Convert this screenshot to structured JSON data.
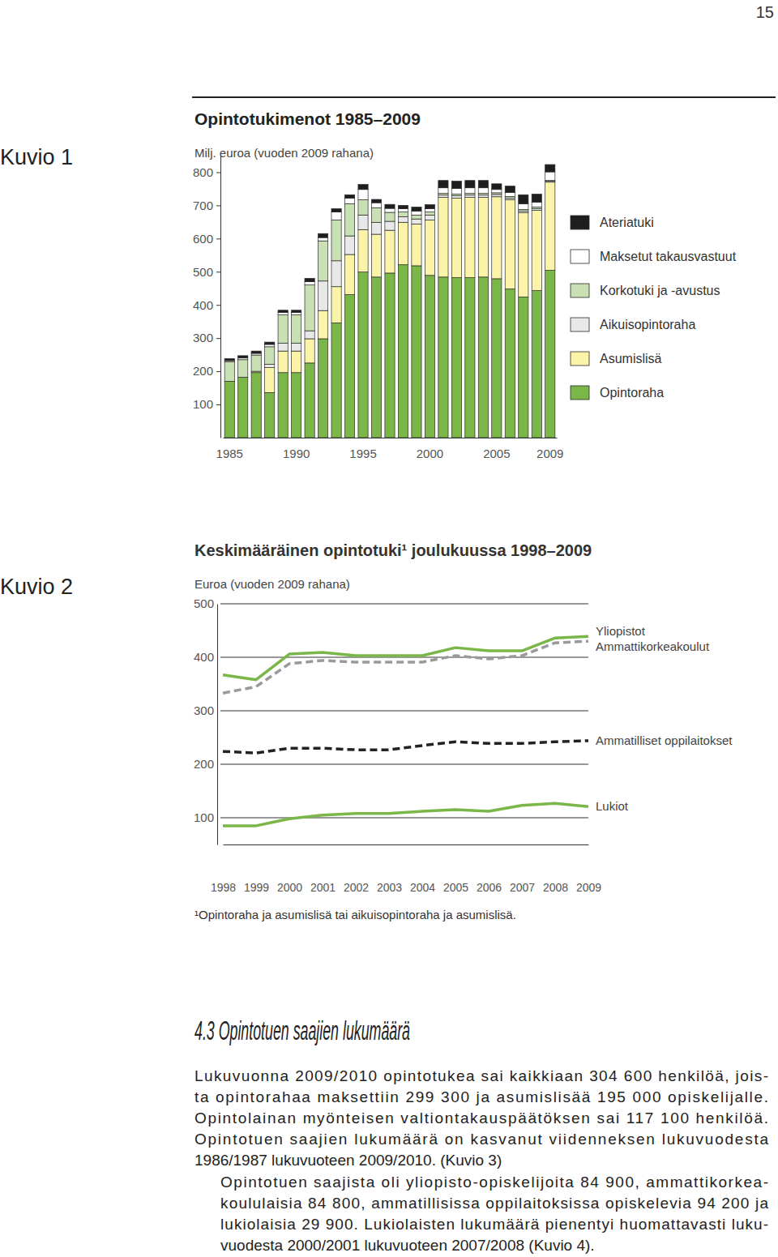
{
  "page_number": "15",
  "chart_data": [
    {
      "type": "bar",
      "figure_label": "Kuvio 1",
      "title": "Opintotukimenot 1985–2009",
      "ylabel": "Milj. euroa (vuoden 2009 rahana)",
      "stacked": true,
      "legend": "right",
      "grid": false,
      "categories": [
        "1985",
        null,
        null,
        null,
        null,
        "1990",
        null,
        null,
        null,
        null,
        "1995",
        null,
        null,
        null,
        null,
        "2000",
        null,
        null,
        null,
        null,
        "2005",
        null,
        null,
        null,
        "2009"
      ],
      "ylim": [
        0,
        850
      ],
      "yticks": [
        100,
        200,
        300,
        400,
        500,
        600,
        700,
        800
      ],
      "series": [
        {
          "name": "Opintoraha",
          "color": "#7ab648",
          "values": [
            170,
            182,
            196,
            136,
            196,
            196,
            225,
            298,
            346,
            431,
            499,
            484,
            496,
            521,
            518,
            489,
            484,
            482,
            482,
            484,
            479,
            448,
            424,
            443,
            504
          ]
        },
        {
          "name": "Asumislisä",
          "color": "#fbf3a8",
          "values": [
            0,
            0,
            4,
            75,
            65,
            65,
            73,
            85,
            109,
            121,
            128,
            129,
            129,
            128,
            126,
            167,
            240,
            240,
            242,
            240,
            247,
            269,
            254,
            242,
            266
          ]
        },
        {
          "name": "Aikuisopintoraha",
          "color": "#e8e8e8",
          "values": [
            0,
            0,
            0,
            10,
            24,
            24,
            24,
            89,
            78,
            56,
            44,
            36,
            27,
            17,
            15,
            15,
            7,
            7,
            7,
            7,
            7,
            5,
            5,
            5,
            3
          ]
        },
        {
          "name": "Korkotuki ja -avustus",
          "color": "#c8e0b4",
          "values": [
            58,
            53,
            49,
            53,
            85,
            85,
            138,
            121,
            123,
            97,
            46,
            44,
            27,
            14,
            12,
            9,
            5,
            5,
            5,
            5,
            5,
            5,
            5,
            5,
            2
          ]
        },
        {
          "name": "Maksetut takausvastuut",
          "color": "#ffffff",
          "values": [
            4,
            5,
            5,
            7,
            7,
            7,
            10,
            10,
            24,
            17,
            31,
            15,
            12,
            10,
            12,
            10,
            17,
            17,
            17,
            17,
            10,
            12,
            17,
            15,
            26
          ]
        },
        {
          "name": "Ateriatuki",
          "color": "#1e1e1e",
          "values": [
            6,
            7,
            7,
            7,
            7,
            7,
            10,
            12,
            10,
            10,
            15,
            10,
            12,
            10,
            12,
            12,
            22,
            22,
            22,
            22,
            17,
            19,
            27,
            24,
            22
          ]
        }
      ]
    },
    {
      "type": "line",
      "figure_label": "Kuvio 2",
      "title": "Keskimääräinen opintotuki¹ joulukuussa 1998–2009",
      "ylabel": "Euroa (vuoden 2009 rahana)",
      "grid": true,
      "x": [
        1998,
        1999,
        2000,
        2001,
        2002,
        2003,
        2004,
        2005,
        2006,
        2007,
        2008,
        2009
      ],
      "xlim": [
        1998,
        2009
      ],
      "xticks": [
        1998,
        1999,
        2000,
        2001,
        2002,
        2003,
        2004,
        2005,
        2006,
        2007,
        2008,
        2009
      ],
      "ylim": [
        50,
        500
      ],
      "yticks": [
        100,
        200,
        300,
        400,
        500
      ],
      "series": [
        {
          "name": "Yliopistot",
          "color": "#7ab648",
          "line_style": "solid",
          "values": [
            367,
            358,
            406,
            409,
            403,
            403,
            403,
            418,
            412,
            412,
            436,
            439
          ]
        },
        {
          "name": "Ammattikorkeakoulut",
          "color": "#9a9a9a",
          "line_style": "dashed",
          "values": [
            333,
            345,
            388,
            394,
            391,
            391,
            391,
            403,
            397,
            403,
            427,
            430
          ]
        },
        {
          "name": "Ammatilliset oppilaitokset",
          "color": "#222222",
          "line_style": "dashed",
          "values": [
            224,
            221,
            230,
            230,
            227,
            227,
            235,
            242,
            239,
            239,
            242,
            244
          ]
        },
        {
          "name": "Lukiot",
          "color": "#7ab648",
          "line_style": "solid",
          "values": [
            85,
            85,
            98,
            105,
            108,
            108,
            112,
            115,
            112,
            123,
            127,
            121
          ]
        }
      ],
      "annotations": [
        "¹Opintoraha ja asumislisä tai aikuisopintoraha ja asumislisä."
      ]
    }
  ],
  "section": {
    "heading": "4.3 Opintotuen saajien lukumäärä",
    "paragraphs": [
      [
        "Lukuvuonna 2009/2010 opintotukea sai kaikkiaan 304 600 henkilöä, jois-",
        "ta opintorahaa maksettiin 299 300 ja asumislisää 195 000 opiskelijalle.",
        "Opintolainan myönteisen valtiontakauspäätöksen sai 117 100 henkilöä.",
        "Opintotuen saajien lukumäärä on kasvanut viidenneksen lukuvuodesta",
        "1986/1987 lukuvuoteen 2009/2010. (Kuvio 3)"
      ],
      [
        "Opintotuen saajista oli yliopisto-opiskelijoita 84 900, ammattikorkea-",
        "koululaisia 84 800, ammatillisissa oppilaitoksissa opiskelevia 94 200 ja",
        "lukiolaisia 29 900. Lukiolaisten lukumäärä pienentyi huomattavasti luku-",
        "vuodesta 2000/2001 lukuvuoteen 2007/2008 (Kuvio 4)."
      ]
    ]
  }
}
